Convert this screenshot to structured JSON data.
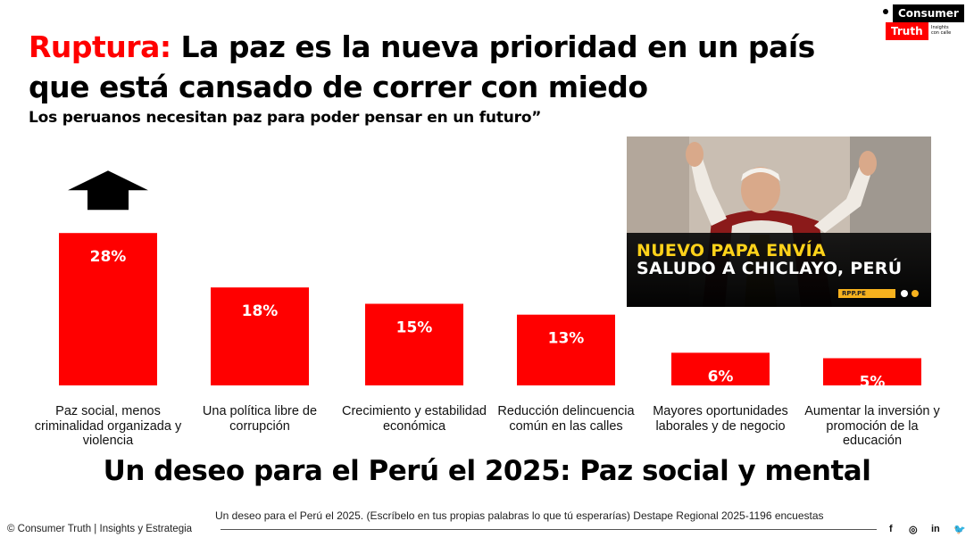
{
  "title": {
    "accent": "Ruptura:",
    "rest": " La paz es la nueva prioridad en un país que está cansado de correr con miedo"
  },
  "subtitle": "Los peruanos necesitan paz para poder pensar en un futuro”",
  "logo": {
    "top": "Consumer",
    "bottom": "Truth",
    "tagline": "Insights con calle"
  },
  "photo": {
    "line1": "NUEVO PAPA ENVÍA",
    "line2": "SALUDO A CHICLAYO, PERÚ",
    "source": "RPP.PE"
  },
  "chart_data": {
    "type": "bar",
    "categories": [
      "Paz social, menos criminalidad organizada y violencia",
      "Una política libre de corrupción",
      "Crecimiento y estabilidad económica",
      "Reducción delincuencia común en las calles",
      "Mayores oportunidades laborales y de negocio",
      "Aumentar la inversión y promoción de la educación"
    ],
    "values": [
      28,
      18,
      15,
      13,
      6,
      5
    ],
    "value_labels": [
      "28%",
      "18%",
      "15%",
      "13%",
      "6%",
      "5%"
    ],
    "bar_color": "#ff0000",
    "label_color": "#ffffff",
    "highlight_arrow_on": 0,
    "grid": false,
    "legend": "none"
  },
  "headline": "Un deseo para el Perú el 2025: Paz social y mental",
  "footer": {
    "copyright": "© Consumer Truth | Insights y Estrategia",
    "source": "Un deseo para el Perú el 2025. (Escríbelo en tus propias palabras lo que tú esperarías) Destape Regional 2025-1196 encuestas",
    "social": [
      "f",
      "◎",
      "in",
      "🐦"
    ]
  },
  "colors": {
    "accent": "#ff0000",
    "text": "#000000"
  }
}
